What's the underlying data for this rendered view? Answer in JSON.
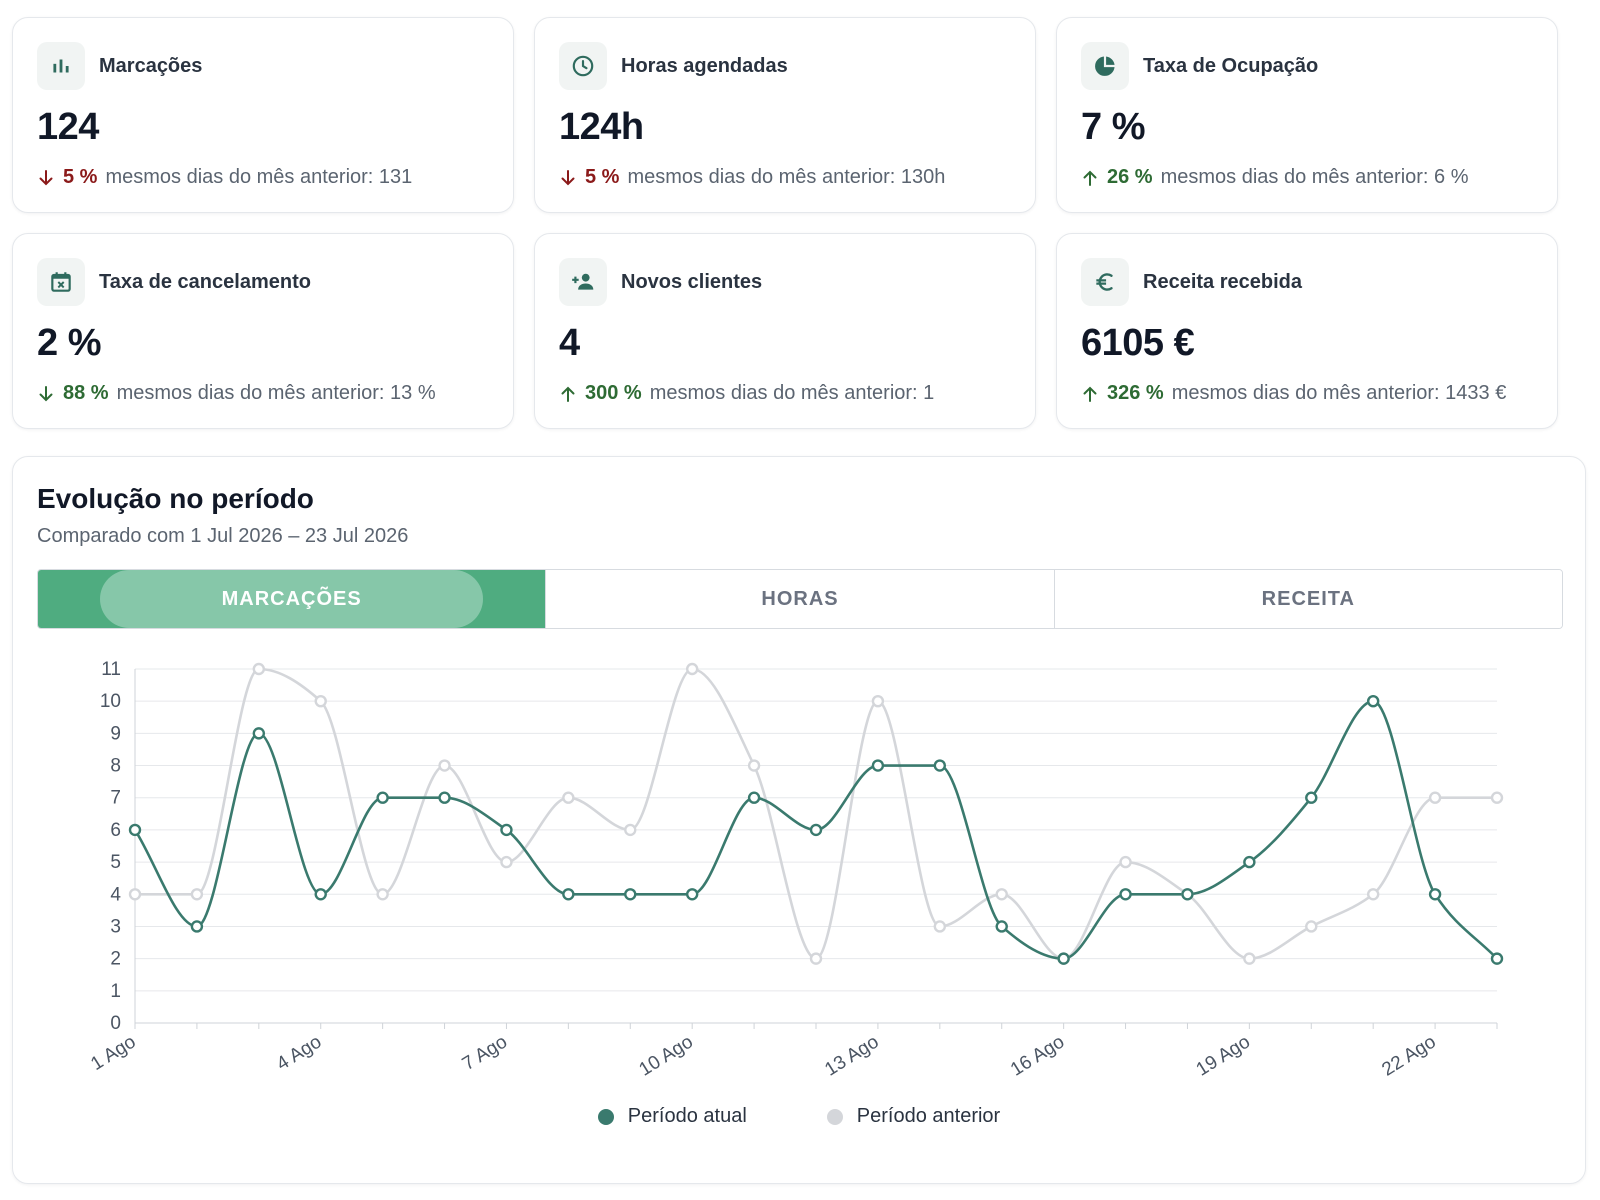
{
  "kpis": [
    {
      "title": "Marcações",
      "icon": "bar-chart-icon",
      "value": "124",
      "trend": "down",
      "pct": "5 %",
      "compare": "mesmos dias do mês anterior: 131"
    },
    {
      "title": "Horas agendadas",
      "icon": "clock-icon",
      "value": "124h",
      "trend": "down",
      "pct": "5 %",
      "compare": "mesmos dias do mês anterior: 130h"
    },
    {
      "title": "Taxa de Ocupação",
      "icon": "pie-chart-icon",
      "value": "7 %",
      "trend": "up",
      "pct": "26 %",
      "compare": "mesmos dias do mês anterior: 6 %"
    },
    {
      "title": "Taxa de cancelamento",
      "icon": "calendar-cancel-icon",
      "value": "2 %",
      "trend": "down-good",
      "pct": "88 %",
      "compare": "mesmos dias do mês anterior: 13 %"
    },
    {
      "title": "Novos clientes",
      "icon": "person-add-icon",
      "value": "4",
      "trend": "up",
      "pct": "300 %",
      "compare": "mesmos dias do mês anterior: 1"
    },
    {
      "title": "Receita recebida",
      "icon": "euro-icon",
      "value": "6105 €",
      "trend": "up",
      "pct": "326 %",
      "compare": "mesmos dias do mês anterior: 1433 €"
    }
  ],
  "chart_section": {
    "title": "Evolução no período",
    "subtitle": "Comparado com 1 Jul 2026 – 23 Jul 2026",
    "tabs": [
      "MARCAÇÕES",
      "HORAS",
      "RECEITA"
    ],
    "active_tab": 0
  },
  "chart_data": {
    "type": "line",
    "x": [
      "1 Ago",
      "2 Ago",
      "3 Ago",
      "4 Ago",
      "5 Ago",
      "6 Ago",
      "7 Ago",
      "8 Ago",
      "9 Ago",
      "10 Ago",
      "11 Ago",
      "12 Ago",
      "13 Ago",
      "14 Ago",
      "15 Ago",
      "16 Ago",
      "17 Ago",
      "18 Ago",
      "19 Ago",
      "20 Ago",
      "21 Ago",
      "22 Ago",
      "23 Ago"
    ],
    "xtick_labels": [
      "1 Ago",
      "4 Ago",
      "7 Ago",
      "10 Ago",
      "13 Ago",
      "16 Ago",
      "19 Ago",
      "22 Ago"
    ],
    "ylim": [
      0,
      11
    ],
    "yticks": [
      0,
      1,
      2,
      3,
      4,
      5,
      6,
      7,
      8,
      9,
      10,
      11
    ],
    "grid": true,
    "legend_position": "bottom",
    "series": [
      {
        "name": "Período atual",
        "color": "#3a7a6e",
        "values": [
          6,
          3,
          9,
          4,
          7,
          7,
          6,
          4,
          4,
          4,
          7,
          6,
          8,
          8,
          3,
          2,
          4,
          4,
          5,
          7,
          10,
          4,
          2
        ]
      },
      {
        "name": "Período anterior",
        "color": "#d4d6da",
        "values": [
          4,
          4,
          11,
          10,
          4,
          8,
          5,
          7,
          6,
          11,
          8,
          2,
          10,
          3,
          4,
          2,
          5,
          4,
          2,
          3,
          4,
          7,
          7
        ]
      }
    ]
  },
  "colors": {
    "accent": "#4fac80",
    "down": "#8b1a1a",
    "up": "#2e6b34",
    "icon": "#2f6b5e"
  }
}
